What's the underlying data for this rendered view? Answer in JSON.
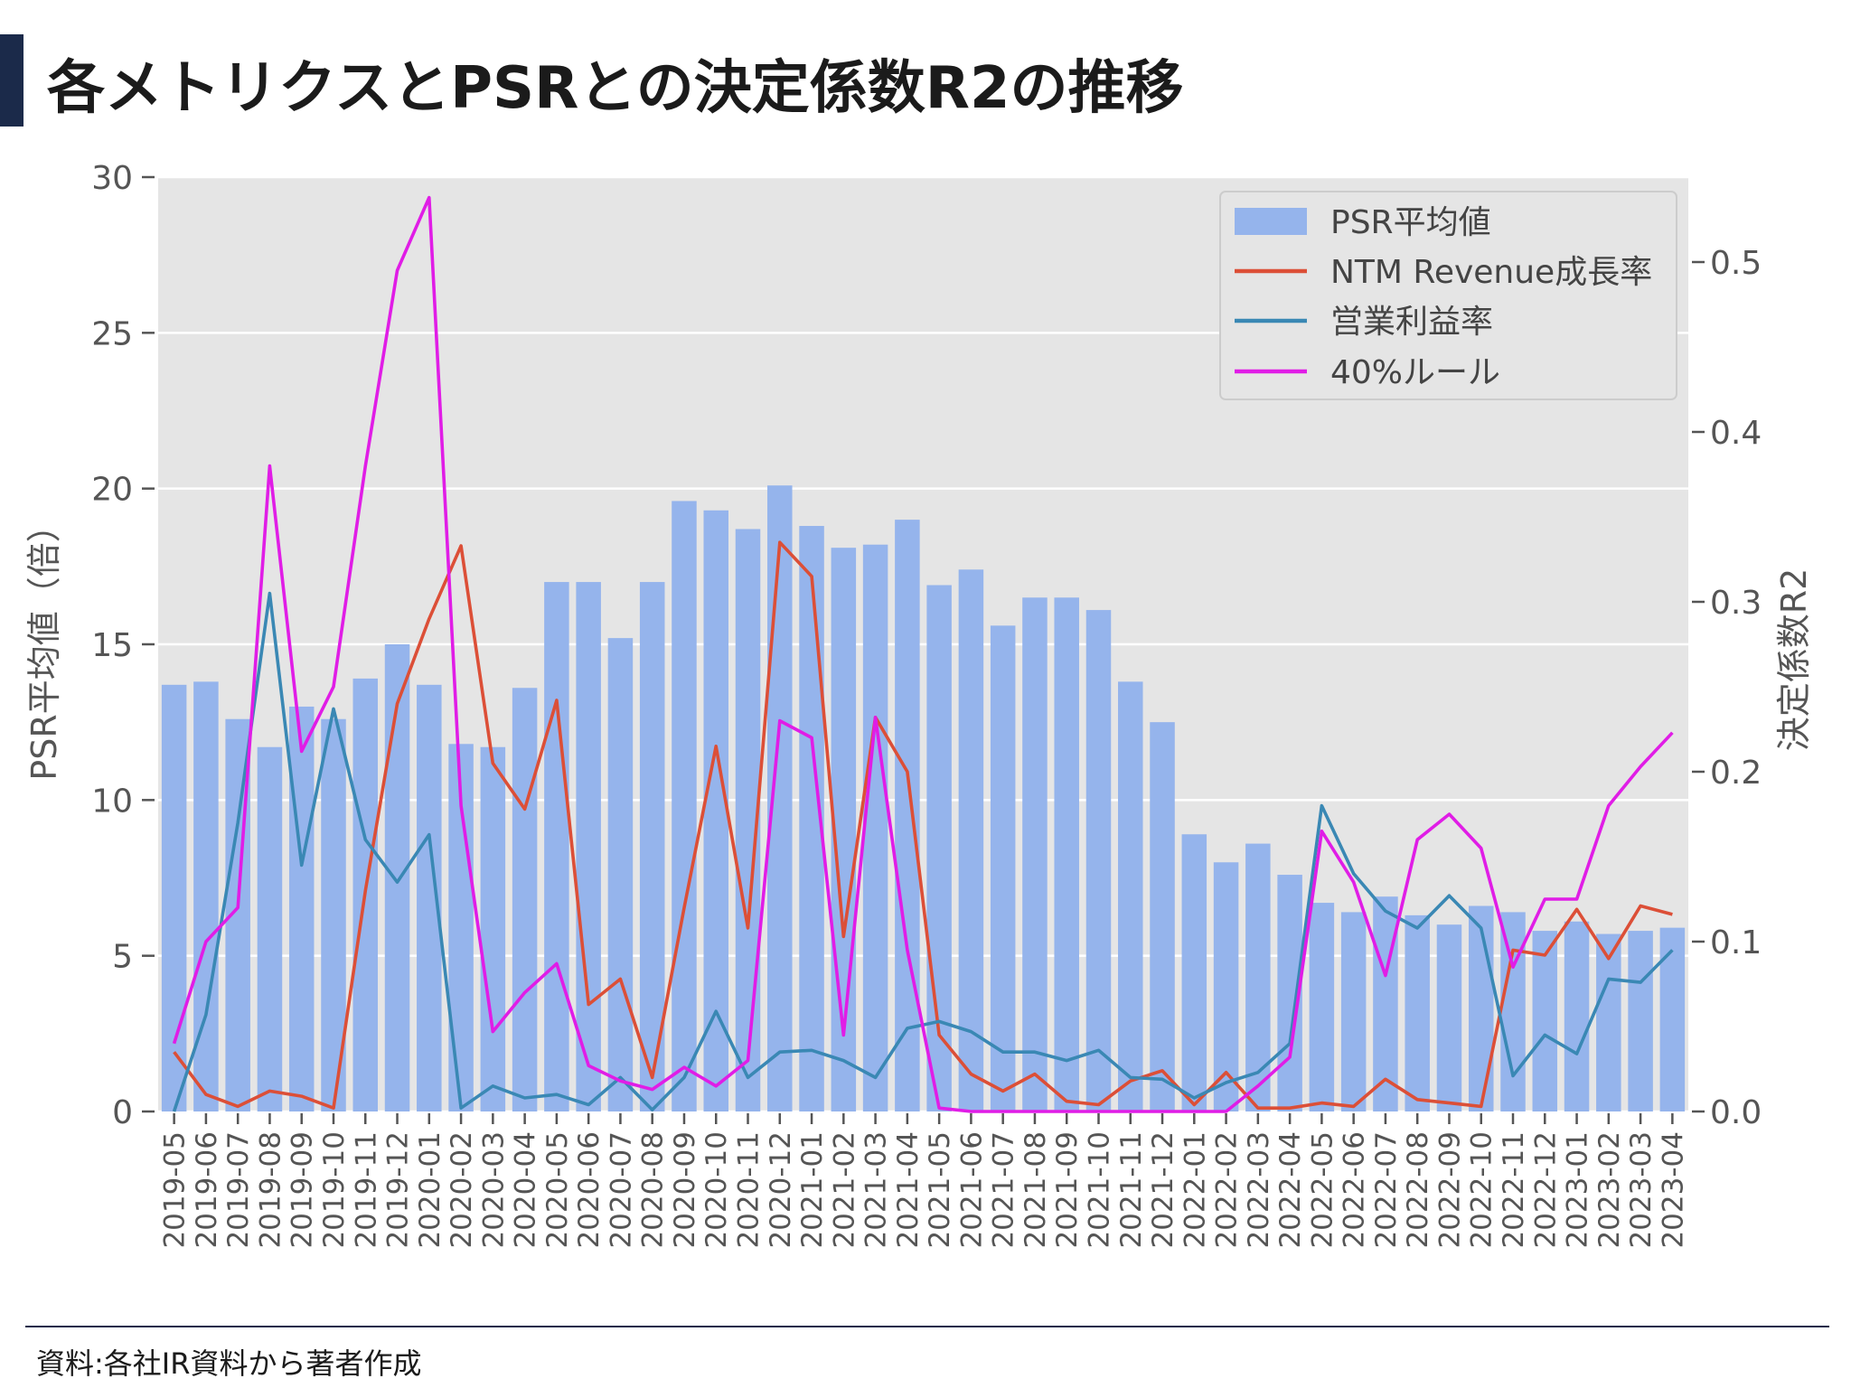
{
  "page": {
    "title": "各メトリクスとPSRとの決定係数R2の推移",
    "source": "資料:各社IR資料から著者作成"
  },
  "colors": {
    "title_accent": "#1b2a4a",
    "plot_bg": "#e5e5e5",
    "bar": "#95b4ec",
    "ntm": "#dc4f37",
    "op": "#3a88b4",
    "rule40": "#e01de6"
  },
  "chart_data": {
    "type": "bar",
    "ylabel": "PSR平均値（倍）",
    "ylabel_right": "決定係数R2",
    "ylim": [
      0,
      30
    ],
    "ylim_right": [
      0,
      0.55
    ],
    "y_ticks": [
      0,
      5,
      10,
      15,
      20,
      25,
      30
    ],
    "y_ticks_right": [
      "0.0",
      "0.1",
      "0.2",
      "0.3",
      "0.4",
      "0.5"
    ],
    "grid": true,
    "legend_position": "top-right",
    "categories": [
      "2019-05",
      "2019-06",
      "2019-07",
      "2019-08",
      "2019-09",
      "2019-10",
      "2019-11",
      "2019-12",
      "2020-01",
      "2020-02",
      "2020-03",
      "2020-04",
      "2020-05",
      "2020-06",
      "2020-07",
      "2020-08",
      "2020-09",
      "2020-10",
      "2020-11",
      "2020-12",
      "2021-01",
      "2021-02",
      "2021-03",
      "2021-04",
      "2021-05",
      "2021-06",
      "2021-07",
      "2021-08",
      "2021-09",
      "2021-10",
      "2021-11",
      "2021-12",
      "2022-01",
      "2022-02",
      "2022-03",
      "2022-04",
      "2022-05",
      "2022-06",
      "2022-07",
      "2022-08",
      "2022-09",
      "2022-10",
      "2022-11",
      "2022-12",
      "2023-01",
      "2023-02",
      "2023-03",
      "2023-04"
    ],
    "bars": {
      "name": "PSR平均値",
      "axis": "left",
      "values": [
        13.7,
        13.8,
        12.6,
        11.7,
        13.0,
        12.6,
        13.9,
        15.0,
        13.7,
        11.8,
        11.7,
        13.6,
        17.0,
        17.0,
        15.2,
        17.0,
        19.6,
        19.3,
        18.7,
        20.1,
        18.8,
        18.1,
        18.2,
        19.0,
        16.9,
        17.4,
        15.6,
        16.5,
        16.5,
        16.1,
        13.8,
        12.5,
        8.9,
        8.0,
        8.6,
        7.6,
        6.7,
        6.4,
        6.9,
        6.3,
        6.0,
        6.6,
        6.4,
        5.8,
        6.1,
        5.7,
        5.8,
        5.9
      ]
    },
    "series": [
      {
        "name": "NTM Revenue成長率",
        "axis": "right",
        "values": [
          0.035,
          0.01,
          0.003,
          0.012,
          0.009,
          0.002,
          0.13,
          0.24,
          0.29,
          0.333,
          0.205,
          0.178,
          0.242,
          0.063,
          0.078,
          0.02,
          0.12,
          0.215,
          0.108,
          0.335,
          0.315,
          0.103,
          0.232,
          0.2,
          0.045,
          0.022,
          0.012,
          0.022,
          0.006,
          0.004,
          0.018,
          0.024,
          0.004,
          0.023,
          0.002,
          0.002,
          0.005,
          0.003,
          0.019,
          0.007,
          0.005,
          0.003,
          0.095,
          0.092,
          0.119,
          0.09,
          0.121,
          0.116
        ]
      },
      {
        "name": "営業利益率",
        "axis": "right",
        "values": [
          0.0,
          0.057,
          0.17,
          0.305,
          0.145,
          0.237,
          0.16,
          0.135,
          0.163,
          0.002,
          0.015,
          0.008,
          0.01,
          0.004,
          0.02,
          0.001,
          0.02,
          0.059,
          0.02,
          0.035,
          0.036,
          0.03,
          0.02,
          0.049,
          0.053,
          0.047,
          0.035,
          0.035,
          0.03,
          0.036,
          0.02,
          0.019,
          0.008,
          0.017,
          0.023,
          0.04,
          0.18,
          0.14,
          0.118,
          0.108,
          0.127,
          0.108,
          0.021,
          0.045,
          0.034,
          0.078,
          0.076,
          0.095
        ]
      },
      {
        "name": "40%ルール",
        "axis": "right",
        "values": [
          0.04,
          0.1,
          0.12,
          0.38,
          0.212,
          0.25,
          0.38,
          0.495,
          0.538,
          0.18,
          0.047,
          0.07,
          0.087,
          0.027,
          0.018,
          0.013,
          0.026,
          0.015,
          0.03,
          0.23,
          0.22,
          0.045,
          0.232,
          0.095,
          0.002,
          0.0,
          0.0,
          0.0,
          0.0,
          0.0,
          0.0,
          0.0,
          0.0,
          0.0,
          0.015,
          0.032,
          0.165,
          0.135,
          0.08,
          0.16,
          0.175,
          0.155,
          0.085,
          0.125,
          0.125,
          0.18,
          0.203,
          0.223
        ]
      }
    ]
  }
}
